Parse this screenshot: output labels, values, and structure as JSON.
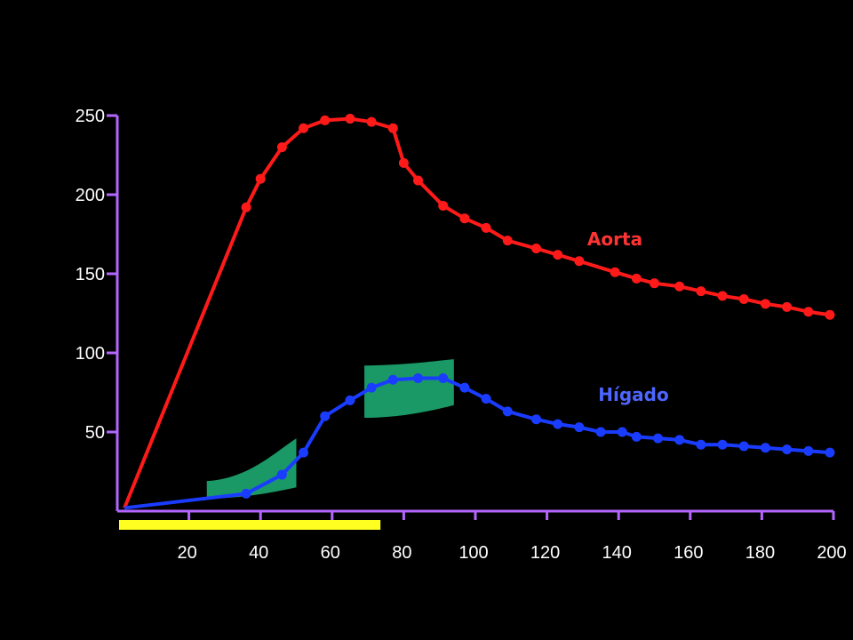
{
  "chart_data": {
    "type": "line",
    "title": "",
    "xlabel": "",
    "ylabel": "",
    "xlim": [
      0,
      200
    ],
    "ylim": [
      0,
      250
    ],
    "x_ticks": [
      20,
      40,
      60,
      80,
      100,
      120,
      140,
      160,
      180,
      200
    ],
    "x_tick_labels": [
      "20",
      "40",
      "60",
      "80",
      "100",
      "120",
      "140",
      "160",
      "180",
      "200"
    ],
    "y_ticks": [
      50,
      100,
      150,
      200,
      250
    ],
    "y_tick_labels": [
      "50",
      "100",
      "150",
      "200",
      "250"
    ],
    "grid": false,
    "series": [
      {
        "name": "Aorta",
        "color": "#ff1a1a",
        "x": [
          2,
          36,
          40,
          46,
          52,
          58,
          65,
          71,
          77,
          80,
          84,
          91,
          97,
          103,
          109,
          117,
          123,
          129,
          139,
          145,
          150,
          157,
          163,
          169,
          175,
          181,
          187,
          193,
          199
        ],
        "y": [
          2,
          192,
          210,
          230,
          242,
          247,
          248,
          246,
          242,
          220,
          209,
          193,
          185,
          179,
          171,
          166,
          162,
          158,
          151,
          147,
          144,
          142,
          139,
          136,
          134,
          131,
          129,
          126,
          124
        ]
      },
      {
        "name": "Hígado",
        "color": "#1a3cff",
        "x": [
          2,
          36,
          46,
          52,
          58,
          65,
          71,
          77,
          84,
          91,
          97,
          103,
          109,
          117,
          123,
          129,
          135,
          141,
          145,
          151,
          157,
          163,
          169,
          175,
          181,
          187,
          193,
          199
        ],
        "y": [
          2,
          11,
          23,
          37,
          60,
          70,
          78,
          83,
          84,
          84,
          78,
          71,
          63,
          58,
          55,
          53,
          50,
          50,
          47,
          46,
          45,
          42,
          42,
          41,
          40,
          39,
          38,
          37
        ]
      }
    ],
    "bands": [
      {
        "x": [
          25,
          50
        ],
        "y_low": [
          8,
          15
        ],
        "y_high": [
          19,
          46
        ],
        "color": "#1a9966"
      },
      {
        "x": [
          69,
          94
        ],
        "y_low": [
          59,
          67
        ],
        "y_high": [
          92,
          96
        ],
        "color": "#1a9966"
      }
    ],
    "highlight_bar": {
      "x": [
        0,
        73
      ],
      "color": "#ffff22"
    },
    "axis_color": "#b366ff"
  }
}
